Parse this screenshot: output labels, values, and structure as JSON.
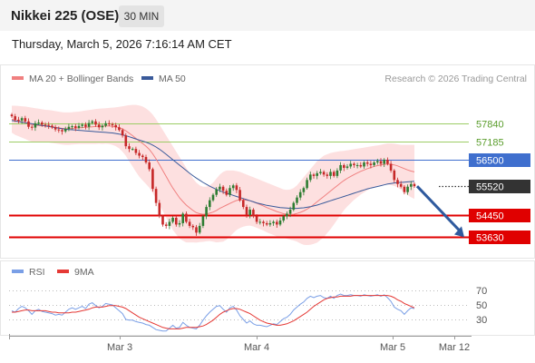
{
  "header": {
    "title": "Nikkei 225 (OSE)",
    "timeframe": "30 MIN",
    "datetime": "Thursday, March 5, 2026 7:16:14 AM CET"
  },
  "legend": {
    "ma20": "MA 20 + Bollinger Bands",
    "ma50": "MA 50",
    "credit": "Research © 2026 Trading Central",
    "rsi": "RSI",
    "rsi_ma": "9MA"
  },
  "colors": {
    "candle_up": "#2e7d32",
    "candle_down": "#c62828",
    "ma20": "#f08080",
    "band_fill": "#fde0e0",
    "ma50": "#3a5a9a",
    "level_green": "#9ccc65",
    "level_blue": "#3f6fce",
    "level_red": "#e00000",
    "current": "#333333",
    "rsi_line": "#7a9fe6",
    "rsi_ma_line": "#e53935",
    "arrow": "#2f5a9e"
  },
  "chart_data": [
    {
      "type": "candlestick",
      "title": "Nikkei 225 (OSE)",
      "interval": "30 MIN",
      "ylim": [
        53400,
        58600
      ],
      "x_ticks": [
        "Mar 3",
        "Mar 4",
        "Mar 5",
        "Mar 12"
      ],
      "levels": [
        {
          "value": 57840,
          "label": "57840",
          "kind": "resistance"
        },
        {
          "value": 57185,
          "label": "57185",
          "kind": "resistance"
        },
        {
          "value": 56500,
          "label": "56500",
          "kind": "pivot"
        },
        {
          "value": 55520,
          "label": "55520",
          "kind": "current"
        },
        {
          "value": 54450,
          "label": "54450",
          "kind": "support"
        },
        {
          "value": 53630,
          "label": "53630",
          "kind": "support"
        }
      ],
      "projection": {
        "from": 55520,
        "to": 53630
      },
      "close": [
        58110,
        57980,
        57950,
        58040,
        57920,
        57720,
        57690,
        57850,
        57880,
        57800,
        57790,
        57760,
        57700,
        57620,
        57600,
        57550,
        57640,
        57720,
        57740,
        57680,
        57750,
        57800,
        57720,
        57860,
        57920,
        57800,
        57700,
        57760,
        57850,
        57820,
        57780,
        57700,
        57600,
        57400,
        57000,
        56900,
        56900,
        56750,
        56650,
        56600,
        56400,
        56150,
        55420,
        54900,
        54400,
        54100,
        54050,
        54200,
        54350,
        54100,
        54150,
        54500,
        54200,
        54050,
        54000,
        53800,
        54050,
        54400,
        54750,
        55000,
        55200,
        55400,
        55500,
        55350,
        55200,
        55450,
        55550,
        55380,
        55000,
        54750,
        54450,
        54650,
        54400,
        54200,
        54200,
        54150,
        54100,
        54150,
        54200,
        54100,
        54250,
        54400,
        54500,
        54650,
        54900,
        55100,
        55300,
        55450,
        55750,
        55950,
        55900,
        56000,
        56050,
        55950,
        55900,
        56050,
        55900,
        56100,
        56300,
        56200,
        56250,
        56350,
        56300,
        56300,
        56250,
        56400,
        56350,
        56300,
        56400,
        56450,
        56350,
        56500,
        56350,
        56100,
        55750,
        55600,
        55500,
        55300,
        55500,
        55600,
        55520
      ],
      "ma20": [
        58000,
        57960,
        57930,
        57900,
        57870,
        57830,
        57800,
        57780,
        57770,
        57760,
        57750,
        57740,
        57720,
        57700,
        57680,
        57660,
        57650,
        57650,
        57660,
        57670,
        57680,
        57690,
        57700,
        57710,
        57720,
        57730,
        57740,
        57740,
        57750,
        57750,
        57740,
        57720,
        57690,
        57640,
        57570,
        57480,
        57390,
        57290,
        57190,
        57100,
        57000,
        56880,
        56720,
        56530,
        56320,
        56100,
        55880,
        55660,
        55450,
        55270,
        55090,
        54950,
        54820,
        54720,
        54620,
        54540,
        54500,
        54480,
        54490,
        54520,
        54560,
        54620,
        54700,
        54760,
        54820,
        54880,
        54940,
        54990,
        55010,
        55010,
        55000,
        54980,
        54940,
        54890,
        54840,
        54790,
        54730,
        54680,
        54630,
        54580,
        54540,
        54500,
        54480,
        54470,
        54480,
        54510,
        54550,
        54600,
        54670,
        54750,
        54840,
        54940,
        55040,
        55140,
        55240,
        55340,
        55440,
        55540,
        55640,
        55730,
        55810,
        55880,
        55950,
        56010,
        56070,
        56120,
        56170,
        56210,
        56250,
        56280,
        56310,
        56330,
        56340,
        56330,
        56310,
        56270,
        56220,
        56170,
        56120,
        56080,
        56050
      ],
      "ma50": [
        57950,
        57930,
        57910,
        57890,
        57870,
        57850,
        57830,
        57810,
        57790,
        57770,
        57750,
        57730,
        57710,
        57690,
        57670,
        57650,
        57630,
        57620,
        57610,
        57600,
        57590,
        57580,
        57570,
        57560,
        57550,
        57540,
        57530,
        57520,
        57510,
        57500,
        57490,
        57470,
        57450,
        57420,
        57390,
        57350,
        57310,
        57270,
        57230,
        57190,
        57150,
        57100,
        57040,
        56970,
        56890,
        56800,
        56700,
        56600,
        56500,
        56400,
        56300,
        56200,
        56100,
        56000,
        55910,
        55820,
        55740,
        55660,
        55590,
        55520,
        55460,
        55400,
        55350,
        55300,
        55260,
        55220,
        55180,
        55140,
        55100,
        55060,
        55020,
        54980,
        54940,
        54900,
        54870,
        54840,
        54810,
        54790,
        54770,
        54750,
        54730,
        54720,
        54710,
        54700,
        54700,
        54700,
        54710,
        54720,
        54740,
        54760,
        54790,
        54820,
        54860,
        54900,
        54940,
        54980,
        55020,
        55060,
        55100,
        55140,
        55180,
        55220,
        55260,
        55300,
        55340,
        55380,
        55420,
        55450,
        55480,
        55510,
        55540,
        55570,
        55600,
        55620,
        55640,
        55650,
        55660,
        55670,
        55680,
        55690,
        55700
      ],
      "bollinger_upper": [
        58500,
        58500,
        58490,
        58480,
        58470,
        58450,
        58430,
        58410,
        58390,
        58370,
        58350,
        58340,
        58320,
        58300,
        58280,
        58260,
        58250,
        58250,
        58260,
        58270,
        58280,
        58300,
        58320,
        58340,
        58360,
        58380,
        58390,
        58400,
        58410,
        58420,
        58430,
        58440,
        58460,
        58480,
        58500,
        58520,
        58530,
        58530,
        58510,
        58470,
        58400,
        58300,
        58170,
        58000,
        57800,
        57600,
        57400,
        57200,
        57000,
        56800,
        56600,
        56400,
        56200,
        56000,
        55800,
        55650,
        55550,
        55500,
        55500,
        55550,
        55650,
        55800,
        55950,
        56050,
        56100,
        56100,
        56100,
        56080,
        56050,
        56000,
        55950,
        55900,
        55850,
        55800,
        55750,
        55700,
        55650,
        55600,
        55550,
        55500,
        55450,
        55400,
        55380,
        55400,
        55450,
        55550,
        55700,
        55850,
        56000,
        56150,
        56300,
        56450,
        56550,
        56650,
        56700,
        56750,
        56780,
        56800,
        56820,
        56830,
        56850,
        56870,
        56890,
        56910,
        56930,
        56950,
        56970,
        56990,
        57010,
        57030,
        57050,
        57080,
        57100,
        57100,
        57090,
        57070,
        57050,
        57050,
        57050,
        57050,
        57050
      ],
      "bollinger_lower": [
        57500,
        57420,
        57370,
        57320,
        57270,
        57210,
        57170,
        57150,
        57150,
        57150,
        57150,
        57140,
        57120,
        57100,
        57080,
        57060,
        57050,
        57050,
        57060,
        57070,
        57080,
        57080,
        57080,
        57080,
        57080,
        57080,
        57090,
        57080,
        57090,
        57080,
        57050,
        57000,
        56920,
        56800,
        56640,
        56440,
        56250,
        56050,
        55870,
        55730,
        55600,
        55460,
        55270,
        55060,
        54840,
        54600,
        54360,
        54120,
        53900,
        53740,
        53580,
        53500,
        53440,
        53440,
        53440,
        53430,
        53450,
        53460,
        53480,
        53490,
        53470,
        53440,
        53450,
        53470,
        53540,
        53660,
        53780,
        53900,
        53970,
        54020,
        54050,
        54060,
        54030,
        53980,
        53930,
        53880,
        53810,
        53760,
        53710,
        53660,
        53630,
        53600,
        53580,
        53540,
        53510,
        53470,
        53400,
        53350,
        53340,
        53350,
        53380,
        53430,
        53530,
        53630,
        53780,
        53930,
        54100,
        54280,
        54460,
        54630,
        54770,
        54890,
        55010,
        55110,
        55210,
        55290,
        55370,
        55430,
        55490,
        55530,
        55570,
        55580,
        55580,
        55560,
        55530,
        55470,
        55390,
        55290,
        55190,
        55110,
        55050
      ]
    },
    {
      "type": "line",
      "title": "RSI",
      "ylim": [
        10,
        85
      ],
      "y_ticks": [
        70,
        50,
        30
      ],
      "series": [
        {
          "name": "RSI",
          "values": [
            42,
            40,
            45,
            48,
            46,
            42,
            37,
            42,
            44,
            41,
            40,
            39,
            38,
            36,
            37,
            36,
            40,
            44,
            46,
            44,
            46,
            48,
            45,
            51,
            53,
            49,
            46,
            48,
            52,
            51,
            50,
            46,
            42,
            38,
            30,
            29,
            29,
            27,
            26,
            25,
            23,
            22,
            19,
            16,
            15,
            14,
            14,
            18,
            22,
            18,
            19,
            26,
            22,
            19,
            18,
            17,
            22,
            29,
            35,
            40,
            44,
            48,
            49,
            44,
            40,
            46,
            48,
            43,
            35,
            30,
            25,
            28,
            24,
            22,
            22,
            21,
            20,
            22,
            24,
            23,
            27,
            31,
            33,
            37,
            43,
            47,
            51,
            54,
            59,
            62,
            60,
            62,
            63,
            60,
            59,
            62,
            59,
            63,
            65,
            63,
            63,
            64,
            63,
            63,
            62,
            64,
            63,
            62,
            63,
            64,
            62,
            64,
            60,
            55,
            47,
            44,
            42,
            37,
            42,
            46,
            45
          ]
        },
        {
          "name": "9MA",
          "values": [
            40,
            40,
            41,
            42,
            43,
            43,
            42,
            42,
            42,
            42,
            42,
            41,
            40,
            40,
            39,
            39,
            39,
            39,
            40,
            40,
            41,
            42,
            43,
            44,
            46,
            47,
            47,
            47,
            48,
            49,
            49,
            49,
            48,
            47,
            45,
            42,
            39,
            36,
            33,
            31,
            29,
            27,
            25,
            23,
            21,
            19,
            18,
            17,
            17,
            17,
            17,
            18,
            19,
            19,
            19,
            19,
            20,
            21,
            23,
            26,
            29,
            33,
            37,
            40,
            42,
            44,
            45,
            45,
            44,
            42,
            40,
            38,
            35,
            32,
            29,
            27,
            25,
            24,
            23,
            22,
            22,
            23,
            24,
            26,
            28,
            31,
            34,
            37,
            40,
            44,
            48,
            51,
            54,
            57,
            59,
            60,
            61,
            61,
            62,
            62,
            62,
            62,
            63,
            63,
            63,
            63,
            63,
            63,
            63,
            63,
            63,
            63,
            63,
            62,
            60,
            57,
            55,
            52,
            50,
            48,
            46
          ]
        }
      ]
    }
  ]
}
